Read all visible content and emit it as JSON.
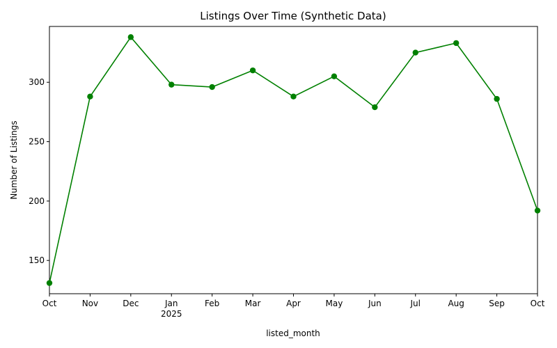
{
  "chart_data": {
    "type": "line",
    "title": "Listings Over Time (Synthetic Data)",
    "xlabel": "listed_month",
    "ylabel": "Number of Listings",
    "color": "#008000",
    "categories": [
      "Oct",
      "Nov",
      "Dec",
      "Jan",
      "Feb",
      "Mar",
      "Apr",
      "May",
      "Jun",
      "Jul",
      "Aug",
      "Sep",
      "Oct"
    ],
    "year_label": "2025",
    "values": [
      131,
      288,
      338,
      298,
      296,
      310,
      288,
      305,
      279,
      325,
      333,
      286,
      192
    ],
    "y_ticks": [
      150,
      200,
      250,
      300
    ],
    "ylim": [
      122,
      347
    ],
    "grid": false,
    "markers": "circle"
  }
}
